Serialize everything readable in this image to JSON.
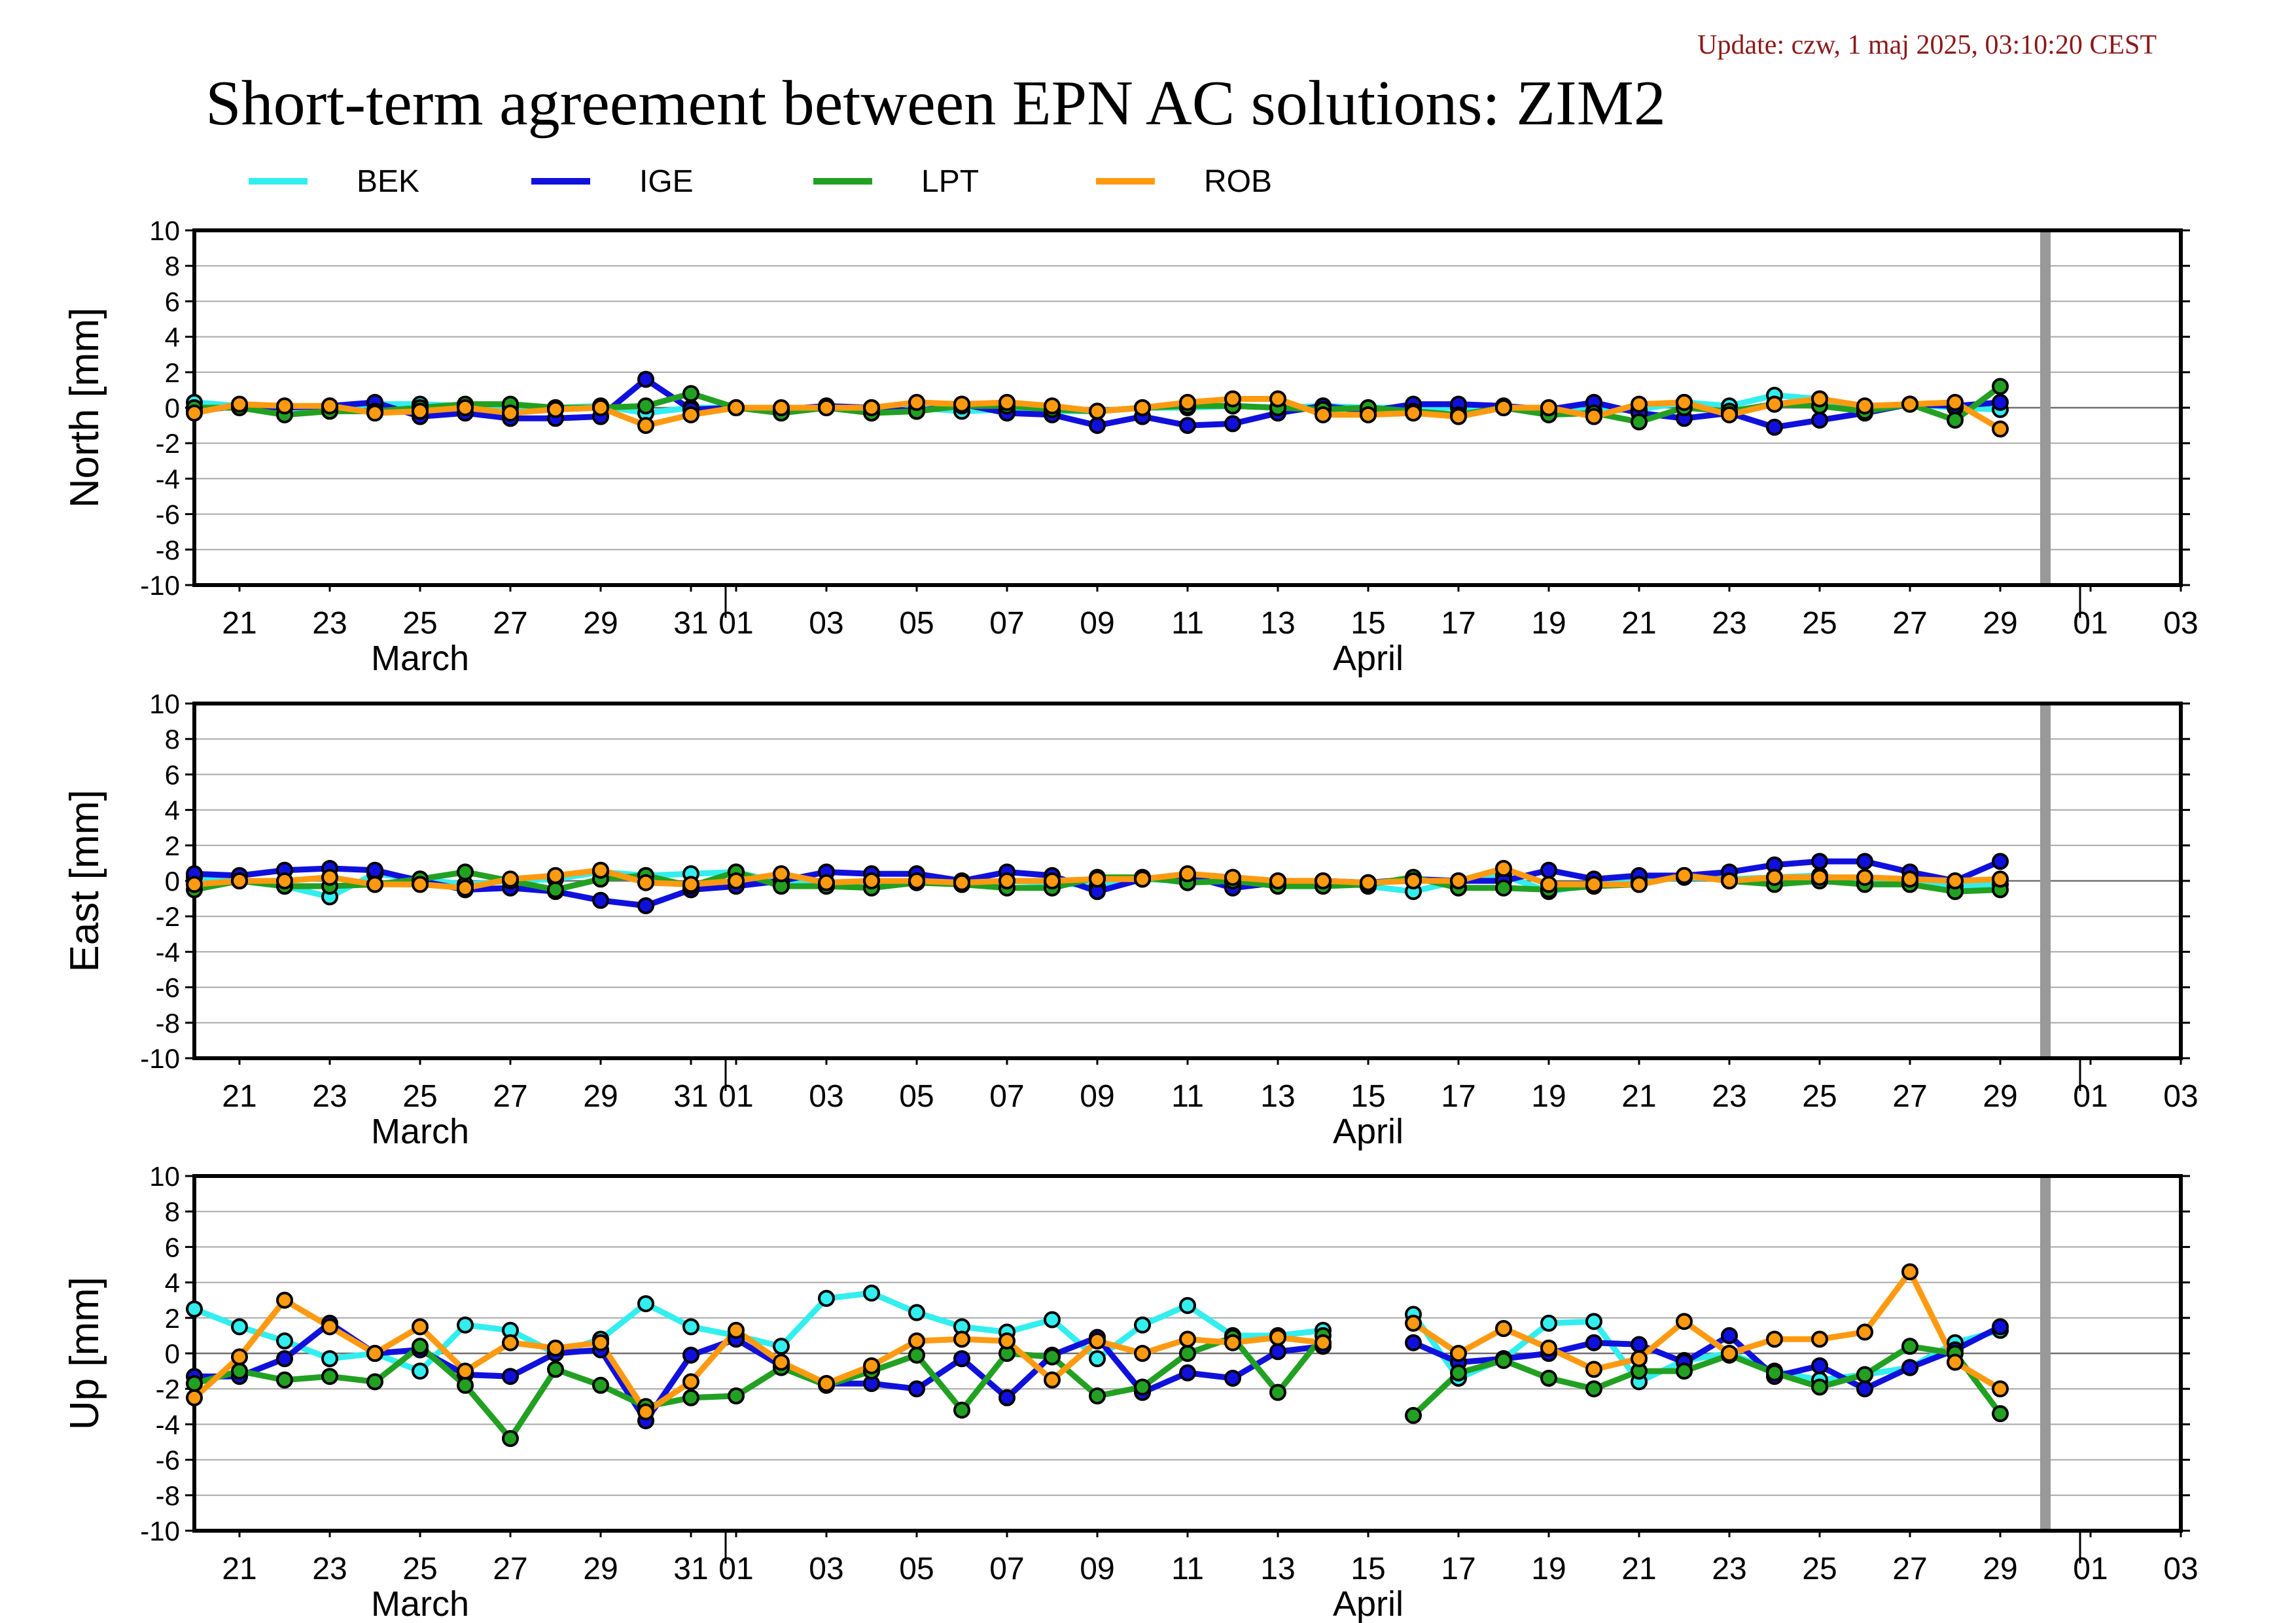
{
  "update_text": "Update: czw, 1 maj 2025, 03:10:20 CEST",
  "colors": {
    "BEK": "#33eeee",
    "IGE": "#1010dd",
    "LPT": "#22a022",
    "ROB": "#ff9a10",
    "cutoff": "#999999"
  },
  "chart_data": {
    "type": "line",
    "title": "Short-term agreement between EPN AC solutions: ZIM2",
    "legend": [
      "BEK",
      "IGE",
      "LPT",
      "ROB"
    ],
    "legend_position": "top",
    "grid": true,
    "x_ticks": [
      "21",
      "23",
      "25",
      "27",
      "29",
      "31",
      "01",
      "03",
      "05",
      "07",
      "09",
      "11",
      "13",
      "15",
      "17",
      "19",
      "21",
      "23",
      "25",
      "27",
      "29",
      "01",
      "03"
    ],
    "x_tick_dates": [
      "2025-03-21",
      "2025-03-23",
      "2025-03-25",
      "2025-03-27",
      "2025-03-29",
      "2025-03-31",
      "2025-04-01",
      "2025-04-03",
      "2025-04-05",
      "2025-04-07",
      "2025-04-09",
      "2025-04-11",
      "2025-04-13",
      "2025-04-15",
      "2025-04-17",
      "2025-04-19",
      "2025-04-21",
      "2025-04-23",
      "2025-04-25",
      "2025-04-27",
      "2025-04-29",
      "2025-05-01",
      "2025-05-03"
    ],
    "month_labels": [
      {
        "label": "March",
        "date": "2025-03-25"
      },
      {
        "label": "April",
        "date": "2025-04-15"
      }
    ],
    "xlim": [
      "2025-03-20",
      "2025-05-03"
    ],
    "cutoff_date": "2025-04-30",
    "x": [
      "2025-03-20",
      "2025-03-21",
      "2025-03-22",
      "2025-03-23",
      "2025-03-24",
      "2025-03-25",
      "2025-03-26",
      "2025-03-27",
      "2025-03-28",
      "2025-03-29",
      "2025-03-30",
      "2025-03-31",
      "2025-04-01",
      "2025-04-02",
      "2025-04-03",
      "2025-04-04",
      "2025-04-05",
      "2025-04-06",
      "2025-04-07",
      "2025-04-08",
      "2025-04-09",
      "2025-04-10",
      "2025-04-11",
      "2025-04-12",
      "2025-04-13",
      "2025-04-14",
      "2025-04-15",
      "2025-04-16",
      "2025-04-17",
      "2025-04-18",
      "2025-04-19",
      "2025-04-20",
      "2025-04-21",
      "2025-04-22",
      "2025-04-23",
      "2025-04-24",
      "2025-04-25",
      "2025-04-26",
      "2025-04-27",
      "2025-04-28",
      "2025-04-29"
    ],
    "panels": [
      {
        "ylabel": "North [mm]",
        "ylim": [
          -10,
          10
        ],
        "yticks": [
          10,
          8,
          6,
          4,
          2,
          0,
          -2,
          -4,
          -6,
          -8,
          -10
        ],
        "series": [
          {
            "name": "BEK",
            "values": [
              0.3,
              0.1,
              0.0,
              0.0,
              0.2,
              0.2,
              0.1,
              0.0,
              0.0,
              0.1,
              -0.3,
              0.0,
              0.0,
              -0.1,
              0.0,
              0.0,
              0.0,
              -0.2,
              -0.1,
              -0.2,
              -0.2,
              0.0,
              0.0,
              0.1,
              0.0,
              0.1,
              0.0,
              0.0,
              0.0,
              0.0,
              0.0,
              -0.2,
              -0.1,
              0.3,
              0.1,
              0.7,
              0.5,
              0.0,
              0.2,
              0.0,
              -0.1
            ]
          },
          {
            "name": "IGE",
            "values": [
              -0.2,
              0.1,
              0.0,
              0.1,
              0.3,
              -0.5,
              -0.3,
              -0.6,
              -0.6,
              -0.5,
              1.6,
              -0.1,
              0.0,
              -0.1,
              0.1,
              0.0,
              -0.2,
              0.2,
              -0.3,
              -0.4,
              -1.0,
              -0.5,
              -1.0,
              -0.9,
              -0.3,
              0.1,
              -0.2,
              0.2,
              0.2,
              0.1,
              -0.1,
              0.3,
              -0.3,
              -0.6,
              -0.3,
              -1.1,
              -0.7,
              -0.3,
              0.2,
              0.1,
              0.3
            ]
          },
          {
            "name": "LPT",
            "values": [
              0.0,
              0.0,
              -0.4,
              -0.2,
              -0.2,
              0.0,
              0.2,
              0.2,
              0.0,
              0.0,
              0.1,
              0.8,
              0.0,
              -0.3,
              0.0,
              -0.3,
              -0.2,
              0.1,
              0.1,
              -0.1,
              -0.2,
              0.0,
              0.1,
              0.1,
              0.0,
              -0.1,
              0.0,
              -0.2,
              -0.4,
              0.0,
              -0.4,
              -0.3,
              -0.8,
              0.0,
              -0.2,
              0.2,
              0.1,
              -0.2,
              0.2,
              -0.7,
              1.2
            ]
          },
          {
            "name": "ROB",
            "values": [
              -0.3,
              0.2,
              0.1,
              0.1,
              -0.3,
              -0.2,
              0.0,
              -0.3,
              -0.1,
              0.0,
              -1.0,
              -0.4,
              0.0,
              0.0,
              0.0,
              0.0,
              0.3,
              0.2,
              0.3,
              0.1,
              -0.2,
              0.0,
              0.3,
              0.5,
              0.5,
              -0.4,
              -0.4,
              -0.3,
              -0.5,
              0.0,
              0.0,
              -0.5,
              0.2,
              0.3,
              -0.4,
              0.2,
              0.5,
              0.1,
              0.2,
              0.3,
              -1.2
            ]
          }
        ]
      },
      {
        "ylabel": "East [mm]",
        "ylim": [
          -10,
          10
        ],
        "yticks": [
          10,
          8,
          6,
          4,
          2,
          0,
          -2,
          -4,
          -6,
          -8,
          -10
        ],
        "series": [
          {
            "name": "BEK",
            "values": [
              0.2,
              0.0,
              -0.3,
              -0.9,
              0.4,
              0.1,
              -0.2,
              0.0,
              0.1,
              0.5,
              0.3,
              0.4,
              0.5,
              -0.1,
              -0.2,
              0.0,
              0.0,
              -0.2,
              0.0,
              -0.1,
              -0.3,
              0.1,
              0.0,
              -0.1,
              0.0,
              0.0,
              -0.3,
              -0.6,
              0.0,
              0.3,
              -0.6,
              -0.2,
              0.0,
              0.2,
              0.1,
              0.2,
              0.3,
              -0.1,
              0.0,
              -0.3,
              -0.2
            ]
          },
          {
            "name": "IGE",
            "values": [
              0.4,
              0.3,
              0.6,
              0.7,
              0.6,
              0.0,
              -0.5,
              -0.4,
              -0.6,
              -1.1,
              -1.4,
              -0.5,
              -0.3,
              0.0,
              0.5,
              0.4,
              0.4,
              0.0,
              0.5,
              0.3,
              -0.6,
              0.1,
              0.3,
              -0.4,
              -0.1,
              0.0,
              -0.1,
              0.1,
              0.0,
              0.0,
              0.6,
              0.1,
              0.3,
              0.3,
              0.5,
              0.9,
              1.1,
              1.1,
              0.5,
              0.0,
              1.1
            ]
          },
          {
            "name": "LPT",
            "values": [
              -0.5,
              0.0,
              -0.3,
              -0.3,
              -0.2,
              0.1,
              0.5,
              0.0,
              -0.5,
              0.1,
              0.3,
              -0.3,
              0.5,
              -0.3,
              -0.3,
              -0.4,
              -0.1,
              -0.2,
              -0.4,
              -0.4,
              0.2,
              0.2,
              -0.1,
              0.0,
              -0.3,
              -0.3,
              -0.2,
              0.2,
              -0.4,
              -0.4,
              -0.5,
              -0.3,
              -0.2,
              0.3,
              0.0,
              -0.2,
              0.0,
              -0.2,
              -0.2,
              -0.6,
              -0.5
            ]
          },
          {
            "name": "ROB",
            "values": [
              -0.2,
              0.0,
              0.0,
              0.2,
              -0.2,
              -0.2,
              -0.4,
              0.1,
              0.3,
              0.6,
              -0.1,
              -0.2,
              0.0,
              0.4,
              -0.1,
              0.0,
              0.0,
              -0.1,
              0.0,
              0.0,
              0.1,
              0.1,
              0.4,
              0.2,
              0.0,
              0.0,
              -0.1,
              0.0,
              0.0,
              0.7,
              -0.2,
              -0.2,
              -0.2,
              0.3,
              0.0,
              0.2,
              0.2,
              0.2,
              0.1,
              0.0,
              0.1
            ]
          }
        ]
      },
      {
        "ylabel": "Up [mm]",
        "ylim": [
          -10,
          10
        ],
        "yticks": [
          10,
          8,
          6,
          4,
          2,
          0,
          -2,
          -4,
          -6,
          -8,
          -10
        ],
        "series": [
          {
            "name": "BEK",
            "values": [
              2.5,
              1.5,
              0.7,
              -0.3,
              0.0,
              -1.0,
              1.6,
              1.3,
              0.0,
              0.8,
              2.8,
              1.5,
              1.0,
              0.4,
              3.1,
              3.4,
              2.3,
              1.5,
              1.2,
              1.9,
              -0.3,
              1.6,
              2.7,
              1.0,
              1.0,
              1.3,
              null,
              2.2,
              -1.4,
              -0.3,
              1.7,
              1.8,
              -1.6,
              -0.4,
              0.0,
              -1.0,
              -1.5,
              -1.2,
              -0.8,
              0.6,
              1.3
            ]
          },
          {
            "name": "IGE",
            "values": [
              -1.3,
              -1.3,
              -0.3,
              1.7,
              0.0,
              0.2,
              -1.2,
              -1.3,
              0.0,
              0.2,
              -3.8,
              -0.1,
              0.8,
              -0.7,
              -1.7,
              -1.7,
              -2.0,
              -0.3,
              -2.5,
              -0.1,
              0.9,
              -2.2,
              -1.1,
              -1.4,
              0.1,
              0.4,
              null,
              0.6,
              -0.5,
              -0.3,
              0.0,
              0.6,
              0.5,
              -0.5,
              1.0,
              -1.3,
              -0.7,
              -2.0,
              -0.8,
              0.2,
              1.5
            ]
          },
          {
            "name": "LPT",
            "values": [
              -1.7,
              -1.0,
              -1.5,
              -1.3,
              -1.6,
              0.4,
              -1.8,
              -4.8,
              -0.9,
              -1.8,
              -3.0,
              -2.5,
              -2.4,
              -0.8,
              -1.8,
              -1.0,
              -0.1,
              -3.2,
              0.0,
              -0.2,
              -2.4,
              -1.9,
              0.0,
              0.9,
              -2.2,
              1.0,
              null,
              -3.5,
              -1.1,
              -0.4,
              -1.4,
              -2.0,
              -1.0,
              -1.0,
              -0.1,
              -1.1,
              -1.9,
              -1.2,
              0.4,
              0.0,
              -3.4
            ]
          },
          {
            "name": "ROB",
            "values": [
              -2.5,
              -0.2,
              3.0,
              1.5,
              0.0,
              1.5,
              -1.0,
              0.6,
              0.3,
              0.6,
              -3.3,
              -1.6,
              1.3,
              -0.5,
              -1.7,
              -0.7,
              0.7,
              0.8,
              0.7,
              -1.5,
              0.7,
              0.0,
              0.8,
              0.6,
              0.9,
              0.6,
              null,
              1.7,
              0.0,
              1.4,
              0.3,
              -0.9,
              -0.3,
              1.8,
              0.0,
              0.8,
              0.8,
              1.2,
              4.6,
              -0.5,
              -2.0
            ]
          }
        ]
      }
    ]
  }
}
